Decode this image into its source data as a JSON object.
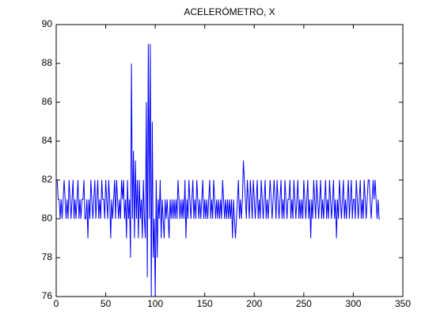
{
  "chart_data": {
    "type": "line",
    "title": "ACELERÓMETRO, X",
    "x": [
      1,
      2,
      3,
      4,
      5,
      6,
      7,
      8,
      9,
      10,
      11,
      12,
      13,
      14,
      15,
      16,
      17,
      18,
      19,
      20,
      21,
      22,
      23,
      24,
      25,
      26,
      27,
      28,
      29,
      30,
      31,
      32,
      33,
      34,
      35,
      36,
      37,
      38,
      39,
      40,
      41,
      42,
      43,
      44,
      45,
      46,
      47,
      48,
      49,
      50,
      51,
      52,
      53,
      54,
      55,
      56,
      57,
      58,
      59,
      60,
      61,
      62,
      63,
      64,
      65,
      66,
      67,
      68,
      69,
      70,
      71,
      72,
      73,
      74,
      75,
      76,
      77,
      78,
      79,
      80,
      81,
      82,
      83,
      84,
      85,
      86,
      87,
      88,
      89,
      90,
      91,
      92,
      93,
      94,
      95,
      96,
      97,
      98,
      99,
      100,
      101,
      102,
      103,
      104,
      105,
      106,
      107,
      108,
      109,
      110,
      111,
      112,
      113,
      114,
      115,
      116,
      117,
      118,
      119,
      120,
      121,
      122,
      123,
      124,
      125,
      126,
      127,
      128,
      129,
      130,
      131,
      132,
      133,
      134,
      135,
      136,
      137,
      138,
      139,
      140,
      141,
      142,
      143,
      144,
      145,
      146,
      147,
      148,
      149,
      150,
      151,
      152,
      153,
      154,
      155,
      156,
      157,
      158,
      159,
      160,
      161,
      162,
      163,
      164,
      165,
      166,
      167,
      168,
      169,
      170,
      171,
      172,
      173,
      174,
      175,
      176,
      177,
      178,
      179,
      180,
      181,
      182,
      183,
      184,
      185,
      186,
      187,
      188,
      189,
      190,
      191,
      192,
      193,
      194,
      195,
      196,
      197,
      198,
      199,
      200,
      201,
      202,
      203,
      204,
      205,
      206,
      207,
      208,
      209,
      210,
      211,
      212,
      213,
      214,
      215,
      216,
      217,
      218,
      219,
      220,
      221,
      222,
      223,
      224,
      225,
      226,
      227,
      228,
      229,
      230,
      231,
      232,
      233,
      234,
      235,
      236,
      237,
      238,
      239,
      240,
      241,
      242,
      243,
      244,
      245,
      246,
      247,
      248,
      249,
      250,
      251,
      252,
      253,
      254,
      255,
      256,
      257,
      258,
      259,
      260,
      261,
      262,
      263,
      264,
      265,
      266,
      267,
      268,
      269,
      270,
      271,
      272,
      273,
      274,
      275,
      276,
      277,
      278,
      279,
      280,
      281,
      282,
      283,
      284,
      285,
      286,
      287,
      288,
      289,
      290,
      291,
      292,
      293,
      294,
      295,
      296,
      297,
      298,
      299,
      300,
      301,
      302,
      303,
      304,
      305,
      306,
      307,
      308,
      309,
      310,
      311,
      312,
      313,
      314,
      315,
      316,
      317,
      318,
      319,
      320,
      321,
      322,
      323,
      324,
      325,
      326,
      327
    ],
    "series": [
      {
        "color": "#0000ff",
        "values": [
          82,
          81,
          81,
          80,
          81,
          80,
          81,
          82,
          81,
          80,
          81,
          80,
          82,
          81,
          80,
          81,
          82,
          80,
          81,
          80,
          81,
          82,
          80,
          81,
          80,
          81,
          81,
          82,
          80,
          80,
          81,
          79,
          81,
          80,
          82,
          81,
          80,
          81,
          82,
          80,
          81,
          82,
          80,
          81,
          80,
          82,
          81,
          81,
          80,
          82,
          81,
          80,
          82,
          81,
          79,
          81,
          80,
          81,
          82,
          80,
          82,
          81,
          80,
          81,
          80,
          82,
          81,
          82,
          80,
          81,
          79,
          82,
          80,
          81,
          78,
          88,
          80,
          83.5,
          79,
          83,
          80,
          82,
          79,
          82,
          80,
          81,
          79,
          82,
          80,
          79,
          86,
          77,
          89,
          80,
          89,
          76,
          85,
          78,
          80,
          76,
          82,
          78,
          81,
          80,
          82,
          79,
          81,
          80,
          79,
          81,
          80,
          81,
          80,
          79,
          81,
          80,
          81,
          80,
          81,
          80,
          81,
          80,
          82,
          81,
          80,
          81,
          80,
          81,
          80,
          82,
          79,
          81,
          80,
          82,
          81,
          80,
          81,
          82,
          80,
          81,
          80,
          82,
          81,
          80,
          81,
          80,
          81,
          82,
          80,
          81,
          80,
          81,
          80,
          81,
          82,
          80,
          81,
          80,
          82,
          81,
          80,
          81,
          80,
          81,
          80,
          81,
          80,
          82,
          81,
          80,
          81,
          80,
          81,
          80,
          81,
          80,
          81,
          79,
          81,
          80,
          79,
          80,
          81,
          82,
          80,
          81,
          80,
          81,
          83,
          82,
          81,
          80,
          82,
          81,
          80,
          82,
          81,
          80,
          82,
          81,
          80,
          81,
          82,
          80,
          81,
          80,
          82,
          81,
          80,
          81,
          82,
          80,
          81,
          80,
          81,
          82,
          81,
          80,
          81,
          82,
          81,
          80,
          82,
          81,
          80,
          81,
          82,
          80,
          81,
          80,
          82,
          81,
          80,
          81,
          81,
          82,
          80,
          81,
          80,
          82,
          81,
          80,
          81,
          82,
          80,
          81,
          80,
          81,
          80,
          82,
          81,
          80,
          81,
          82,
          80,
          81,
          79,
          81,
          80,
          82,
          81,
          80,
          82,
          81,
          80,
          81,
          82,
          80,
          81,
          80,
          81,
          82,
          80,
          81,
          80,
          82,
          81,
          80,
          81,
          82,
          80,
          81,
          79,
          81,
          80,
          82,
          81,
          80,
          81,
          82,
          80,
          81,
          80,
          81,
          82,
          80,
          81,
          82,
          80,
          81,
          81,
          80,
          82,
          81,
          80,
          81,
          82,
          80,
          81,
          80,
          82,
          81,
          80,
          81,
          82,
          82,
          81,
          80,
          81,
          82,
          81,
          82,
          81,
          80,
          81,
          80,
          80
        ]
      }
    ],
    "xlim": [
      0,
      350
    ],
    "xticks": [
      0,
      50,
      100,
      150,
      200,
      250,
      300,
      350
    ],
    "ylim": [
      76,
      90
    ],
    "yticks": [
      76,
      78,
      80,
      82,
      84,
      86,
      88,
      90
    ]
  }
}
